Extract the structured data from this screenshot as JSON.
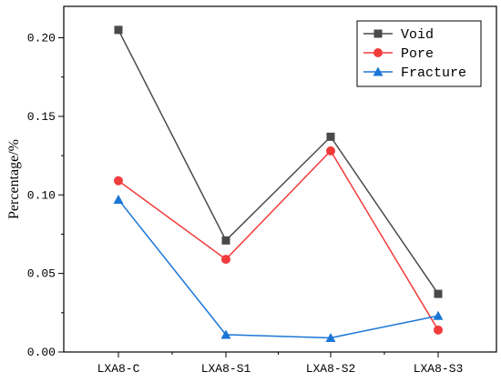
{
  "chart_data": {
    "type": "line",
    "title": "",
    "xlabel": "",
    "ylabel": "Percentage/%",
    "categories": [
      "LXA8-C",
      "LXA8-S1",
      "LXA8-S2",
      "LXA8-S3"
    ],
    "ylim": [
      0,
      0.22
    ],
    "yticks": [
      "0.00",
      "0.05",
      "0.10",
      "0.15",
      "0.20"
    ],
    "grid": false,
    "legend": "top-right",
    "series": [
      {
        "name": "Void",
        "marker": "square",
        "color": "#4a4a4a",
        "values": [
          0.205,
          0.071,
          0.137,
          0.037
        ]
      },
      {
        "name": "Pore",
        "marker": "circle",
        "color": "#f23c3c",
        "values": [
          0.109,
          0.059,
          0.128,
          0.014
        ]
      },
      {
        "name": "Fracture",
        "marker": "triangle",
        "color": "#1a76d6",
        "values": [
          0.097,
          0.011,
          0.009,
          0.023
        ]
      }
    ]
  }
}
